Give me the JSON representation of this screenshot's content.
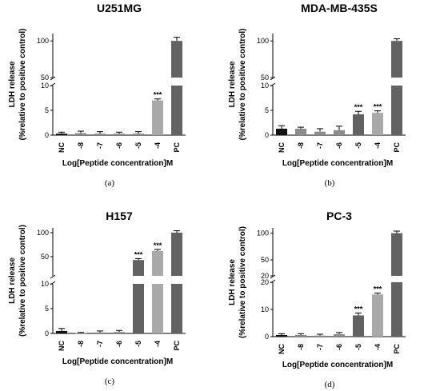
{
  "chart_data": [
    {
      "type": "bar",
      "label": "(a)",
      "title": "U251MG",
      "ylabel_line1": "LDH release",
      "ylabel_line2": "(%relative to positive control)",
      "xlabel": "Log[Peptide concentration]M",
      "categories": [
        "NC",
        "-8",
        "-7",
        "-6",
        "-5",
        "-4",
        "PC"
      ],
      "values": [
        0.3,
        0.4,
        0.3,
        0.3,
        0.3,
        7.0,
        100
      ],
      "errors": [
        0.3,
        0.4,
        0.4,
        0.3,
        0.4,
        0.3,
        5
      ],
      "colors": [
        "#111111",
        "#8c8c8c",
        "#8c8c8c",
        "#8c8c8c",
        "#8c8c8c",
        "#a9a9a9",
        "#626262"
      ],
      "significance": [
        "",
        "",
        "",
        "",
        "",
        "***",
        ""
      ],
      "axis_lower": {
        "range": [
          0,
          10
        ],
        "ticks": [
          0,
          5,
          10
        ]
      },
      "axis_upper": {
        "range": [
          50,
          110
        ],
        "ticks": [
          50,
          100
        ]
      }
    },
    {
      "type": "bar",
      "label": "(b)",
      "title": "MDA-MB-435S",
      "ylabel_line1": "LDH release",
      "ylabel_line2": "(%relative to positive control)",
      "xlabel": "Log[Peptide concentration]M",
      "categories": [
        "NC",
        "-8",
        "-7",
        "-6",
        "-5",
        "-4",
        "PC"
      ],
      "values": [
        1.3,
        1.3,
        0.7,
        1.0,
        4.2,
        4.5,
        100
      ],
      "errors": [
        0.6,
        0.3,
        0.6,
        0.8,
        0.6,
        0.4,
        3
      ],
      "colors": [
        "#111111",
        "#8c8c8c",
        "#8c8c8c",
        "#8c8c8c",
        "#626262",
        "#a9a9a9",
        "#626262"
      ],
      "significance": [
        "",
        "",
        "",
        "",
        "***",
        "***",
        ""
      ],
      "axis_lower": {
        "range": [
          0,
          10
        ],
        "ticks": [
          0,
          5,
          10
        ]
      },
      "axis_upper": {
        "range": [
          50,
          110
        ],
        "ticks": [
          50,
          100
        ]
      }
    },
    {
      "type": "bar",
      "label": "(c)",
      "title": "H157",
      "ylabel_line1": "LDH release",
      "ylabel_line2": "(%relative to positive control)",
      "xlabel": "Log[Peptide concentration]M",
      "categories": [
        "NC",
        "-8",
        "-7",
        "-6",
        "-5",
        "-4",
        "PC"
      ],
      "values": [
        0.5,
        0.1,
        0.2,
        0.3,
        43,
        62,
        100
      ],
      "errors": [
        0.5,
        0.1,
        0.3,
        0.3,
        3,
        3,
        4
      ],
      "colors": [
        "#111111",
        "#8c8c8c",
        "#8c8c8c",
        "#8c8c8c",
        "#626262",
        "#a9a9a9",
        "#626262"
      ],
      "significance": [
        "",
        "",
        "",
        "",
        "***",
        "***",
        ""
      ],
      "axis_lower": {
        "range": [
          0,
          10
        ],
        "ticks": [
          0,
          5,
          10
        ]
      },
      "axis_upper": {
        "range": [
          10,
          110
        ],
        "ticks": [
          50,
          100
        ]
      }
    },
    {
      "type": "bar",
      "label": "(d)",
      "title": "PC-3",
      "ylabel_line1": "LDH release",
      "ylabel_line2": "(%relative to positive control)",
      "xlabel": "Log[Peptide concentration]M",
      "categories": [
        "NC",
        "-8",
        "-7",
        "-6",
        "-5",
        "-4",
        "PC"
      ],
      "values": [
        0.6,
        0.6,
        0.4,
        0.9,
        7.8,
        15.5,
        100
      ],
      "errors": [
        0.5,
        0.5,
        0.5,
        0.6,
        0.9,
        0.5,
        4
      ],
      "colors": [
        "#111111",
        "#8c8c8c",
        "#8c8c8c",
        "#8c8c8c",
        "#626262",
        "#a9a9a9",
        "#626262"
      ],
      "significance": [
        "",
        "",
        "",
        "",
        "***",
        "***",
        ""
      ],
      "axis_lower": {
        "range": [
          0,
          20
        ],
        "ticks": [
          0,
          10,
          20
        ]
      },
      "axis_upper": {
        "range": [
          20,
          110
        ],
        "ticks": [
          20,
          50,
          100
        ]
      }
    }
  ]
}
